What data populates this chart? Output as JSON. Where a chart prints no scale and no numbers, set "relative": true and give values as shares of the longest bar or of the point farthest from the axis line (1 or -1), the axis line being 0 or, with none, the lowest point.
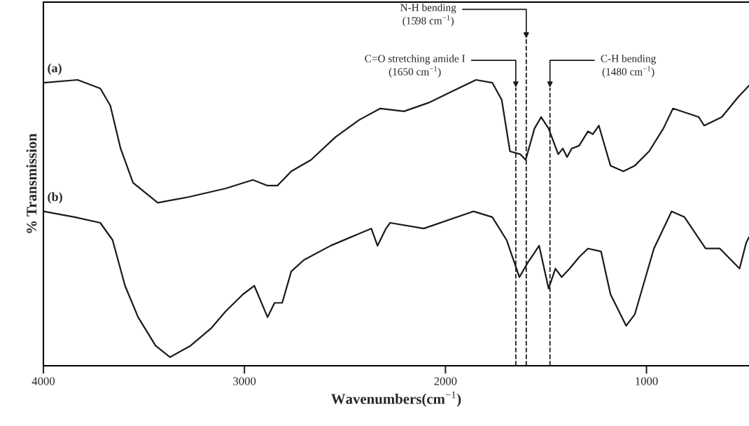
{
  "chart_data": {
    "type": "line",
    "relative": true,
    "xlabel": "Wavenumbers(cm$^{−1}$)",
    "ylabel": "% Transmission",
    "xlim": [
      4000,
      490
    ],
    "xticks": [
      4000,
      3000,
      2000,
      1000
    ],
    "legend": false,
    "grid": false,
    "marker": "none",
    "line_style": "solid",
    "series": [
      {
        "name": "(a)",
        "color": "#1a1a1a",
        "x": [
          4000,
          3830,
          3717,
          3667,
          3616,
          3554,
          3431,
          3279,
          3094,
          2958,
          2885,
          2836,
          2767,
          2669,
          2547,
          2429,
          2324,
          2206,
          2084,
          1966,
          1848,
          1767,
          1720,
          1679,
          1628,
          1601,
          1557,
          1524,
          1487,
          1439,
          1416,
          1395,
          1372,
          1335,
          1291,
          1267,
          1237,
          1179,
          1115,
          1058,
          987,
          916,
          868,
          740,
          713,
          625,
          544,
          490
        ],
        "values": [
          0.99,
          1.0,
          0.97,
          0.91,
          0.76,
          0.64,
          0.57,
          0.59,
          0.62,
          0.65,
          0.63,
          0.63,
          0.68,
          0.72,
          0.8,
          0.86,
          0.9,
          0.89,
          0.92,
          0.96,
          1.0,
          0.99,
          0.93,
          0.75,
          0.74,
          0.72,
          0.83,
          0.87,
          0.83,
          0.74,
          0.76,
          0.73,
          0.76,
          0.77,
          0.82,
          0.81,
          0.84,
          0.7,
          0.68,
          0.7,
          0.75,
          0.83,
          0.9,
          0.87,
          0.84,
          0.87,
          0.94,
          0.98
        ]
      },
      {
        "name": "(b)",
        "color": "#1a1a1a",
        "x": [
          4000,
          3844,
          3717,
          3656,
          3594,
          3529,
          3442,
          3370,
          3268,
          3167,
          3094,
          3007,
          2951,
          2885,
          2850,
          2812,
          2767,
          2704,
          2571,
          2369,
          2338,
          2296,
          2275,
          2108,
          1861,
          1767,
          1696,
          1632,
          1591,
          1534,
          1487,
          1453,
          1422,
          1382,
          1335,
          1291,
          1226,
          1179,
          1101,
          1058,
          963,
          875,
          811,
          706,
          635,
          537,
          504,
          490
        ],
        "values": [
          0.54,
          0.52,
          0.5,
          0.44,
          0.28,
          0.17,
          0.07,
          0.03,
          0.07,
          0.13,
          0.19,
          0.25,
          0.28,
          0.17,
          0.22,
          0.22,
          0.33,
          0.37,
          0.42,
          0.48,
          0.42,
          0.48,
          0.5,
          0.48,
          0.54,
          0.52,
          0.44,
          0.31,
          0.36,
          0.42,
          0.27,
          0.34,
          0.31,
          0.34,
          0.38,
          0.41,
          0.4,
          0.25,
          0.14,
          0.18,
          0.41,
          0.54,
          0.52,
          0.41,
          0.41,
          0.34,
          0.43,
          0.45
        ]
      }
    ],
    "ref_lines": [
      {
        "axis": "x",
        "value": 1650,
        "label": "C=O stretching amide I\n(1650 cm$^{−1}$)",
        "color": "#1a1a1a",
        "line_style": "dashed"
      },
      {
        "axis": "x",
        "value": 1598,
        "label": "N-H bending\n(1598 cm$^{−1}$)",
        "color": "#1a1a1a",
        "line_style": "dashed"
      },
      {
        "axis": "x",
        "value": 1480,
        "label": "C-H bending\n(1480 cm$^{−1}$)",
        "color": "#1a1a1a",
        "line_style": "dashed"
      }
    ]
  }
}
